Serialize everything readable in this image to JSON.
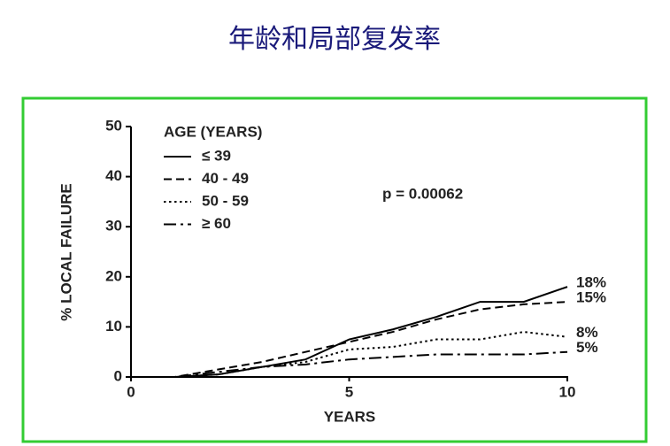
{
  "chart_data": {
    "type": "line",
    "title": "年龄和局部复发率",
    "x_label": "YEARS",
    "y_label": "% LOCAL FAILURE",
    "legend_title": "AGE (YEARS)",
    "annotation": "p = 0.00062",
    "x": [
      0,
      1,
      2,
      3,
      4,
      5,
      6,
      7,
      8,
      9,
      10
    ],
    "xlim": [
      0,
      10
    ],
    "xticks": [
      0,
      5,
      10
    ],
    "ylim": [
      0,
      50
    ],
    "yticks": [
      0,
      10,
      20,
      30,
      40,
      50
    ],
    "grid": false,
    "legend": "upper left",
    "series": [
      {
        "name": "≤ 39",
        "color": "#000000",
        "dash": "solid",
        "values": [
          0,
          0,
          0.5,
          2,
          3.5,
          7.5,
          9.5,
          12,
          15,
          15,
          18
        ],
        "value_labels": [
          null,
          null,
          null,
          null,
          null,
          null,
          null,
          null,
          null,
          null,
          "18%"
        ]
      },
      {
        "name": "40 - 49",
        "color": "#000000",
        "dash": "dashed",
        "values": [
          0,
          0,
          1.5,
          3,
          5,
          7,
          9,
          11.5,
          13.5,
          14.5,
          15
        ],
        "value_labels": [
          null,
          null,
          null,
          null,
          null,
          null,
          null,
          null,
          null,
          null,
          "15%"
        ]
      },
      {
        "name": "50 - 59",
        "color": "#000000",
        "dash": "dotted",
        "values": [
          0,
          0,
          0.5,
          2,
          3,
          5.5,
          6,
          7.5,
          7.5,
          9,
          8
        ],
        "value_labels": [
          null,
          null,
          null,
          null,
          null,
          null,
          null,
          null,
          null,
          null,
          "8%"
        ]
      },
      {
        "name": "≥ 60",
        "color": "#000000",
        "dash": "dashdot",
        "values": [
          0,
          0,
          1,
          2,
          2.5,
          3.5,
          4,
          4.5,
          4.5,
          4.5,
          5
        ],
        "value_labels": [
          null,
          null,
          null,
          null,
          null,
          null,
          null,
          null,
          null,
          null,
          "5%"
        ]
      }
    ]
  }
}
